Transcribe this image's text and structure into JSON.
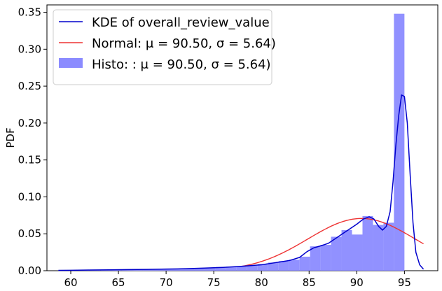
{
  "chart_data": {
    "type": "histogram",
    "ylabel": "PDF",
    "xlabel": "",
    "xlim": [
      57.5,
      98.5
    ],
    "ylim": [
      0,
      0.36
    ],
    "x_ticks": [
      60,
      65,
      70,
      75,
      80,
      85,
      90,
      95
    ],
    "y_ticks": [
      0.0,
      0.05,
      0.1,
      0.15,
      0.2,
      0.25,
      0.3,
      0.35
    ],
    "y_tick_labels": [
      "0.00",
      "0.05",
      "0.10",
      "0.15",
      "0.20",
      "0.25",
      "0.30",
      "0.35"
    ],
    "legend": {
      "placement": "upper-left",
      "entries": [
        {
          "label": "KDE of overall_review_value",
          "kind": "line",
          "color": "#0000cc"
        },
        {
          "label": "Normal: μ = 90.50, σ = 5.64)",
          "kind": "line",
          "color": "#ee3333"
        },
        {
          "label": "Histo: : μ = 90.50, σ = 5.64)",
          "kind": "patch",
          "color": "#8b8bff"
        }
      ]
    },
    "histogram": {
      "color": "#8b8bff",
      "bin_width": 1.1,
      "bins": [
        {
          "x0": 58.7,
          "value": 0.0005
        },
        {
          "x0": 59.8,
          "value": 0.0008
        },
        {
          "x0": 60.9,
          "value": 0.001
        },
        {
          "x0": 62.0,
          "value": 0.0012
        },
        {
          "x0": 63.1,
          "value": 0.0012
        },
        {
          "x0": 64.2,
          "value": 0.0015
        },
        {
          "x0": 65.3,
          "value": 0.0018
        },
        {
          "x0": 66.4,
          "value": 0.002
        },
        {
          "x0": 67.5,
          "value": 0.0018
        },
        {
          "x0": 68.6,
          "value": 0.002
        },
        {
          "x0": 69.7,
          "value": 0.0022
        },
        {
          "x0": 70.8,
          "value": 0.0025
        },
        {
          "x0": 71.9,
          "value": 0.003
        },
        {
          "x0": 73.0,
          "value": 0.0035
        },
        {
          "x0": 74.1,
          "value": 0.004
        },
        {
          "x0": 75.2,
          "value": 0.005
        },
        {
          "x0": 76.3,
          "value": 0.0055
        },
        {
          "x0": 77.4,
          "value": 0.006
        },
        {
          "x0": 78.5,
          "value": 0.007
        },
        {
          "x0": 79.6,
          "value": 0.009
        },
        {
          "x0": 80.7,
          "value": 0.011
        },
        {
          "x0": 81.8,
          "value": 0.013
        },
        {
          "x0": 82.9,
          "value": 0.015
        },
        {
          "x0": 84.0,
          "value": 0.019
        },
        {
          "x0": 85.1,
          "value": 0.033
        },
        {
          "x0": 86.2,
          "value": 0.035
        },
        {
          "x0": 87.3,
          "value": 0.046
        },
        {
          "x0": 88.4,
          "value": 0.055
        },
        {
          "x0": 89.5,
          "value": 0.049
        },
        {
          "x0": 90.6,
          "value": 0.074
        },
        {
          "x0": 91.7,
          "value": 0.062
        },
        {
          "x0": 92.8,
          "value": 0.065
        },
        {
          "x0": 93.9,
          "value": 0.348
        }
      ]
    },
    "normal_curve": {
      "mu": 90.5,
      "sigma": 5.64,
      "x_range": [
        78.0,
        97.0
      ],
      "color": "#ee3333"
    },
    "kde_curve": {
      "color": "#0000cc",
      "points": [
        [
          58.7,
          0.0005
        ],
        [
          60,
          0.0006
        ],
        [
          62,
          0.0009
        ],
        [
          64,
          0.0012
        ],
        [
          66,
          0.0015
        ],
        [
          68,
          0.0018
        ],
        [
          70,
          0.0022
        ],
        [
          72,
          0.0027
        ],
        [
          74,
          0.0035
        ],
        [
          76,
          0.0045
        ],
        [
          78,
          0.006
        ],
        [
          80,
          0.008
        ],
        [
          81,
          0.01
        ],
        [
          82,
          0.012
        ],
        [
          83,
          0.014
        ],
        [
          84,
          0.018
        ],
        [
          84.8,
          0.026
        ],
        [
          85.5,
          0.031
        ],
        [
          86.3,
          0.034
        ],
        [
          87,
          0.037
        ],
        [
          87.7,
          0.043
        ],
        [
          88.5,
          0.05
        ],
        [
          89.2,
          0.056
        ],
        [
          90,
          0.063
        ],
        [
          90.7,
          0.07
        ],
        [
          91.3,
          0.073
        ],
        [
          91.8,
          0.07
        ],
        [
          92.3,
          0.06
        ],
        [
          92.7,
          0.055
        ],
        [
          93.1,
          0.06
        ],
        [
          93.5,
          0.08
        ],
        [
          93.8,
          0.12
        ],
        [
          94.1,
          0.17
        ],
        [
          94.4,
          0.21
        ],
        [
          94.7,
          0.238
        ],
        [
          95.0,
          0.236
        ],
        [
          95.3,
          0.2
        ],
        [
          95.6,
          0.13
        ],
        [
          95.9,
          0.065
        ],
        [
          96.2,
          0.025
        ],
        [
          96.6,
          0.008
        ],
        [
          97.0,
          0.002
        ]
      ]
    }
  }
}
